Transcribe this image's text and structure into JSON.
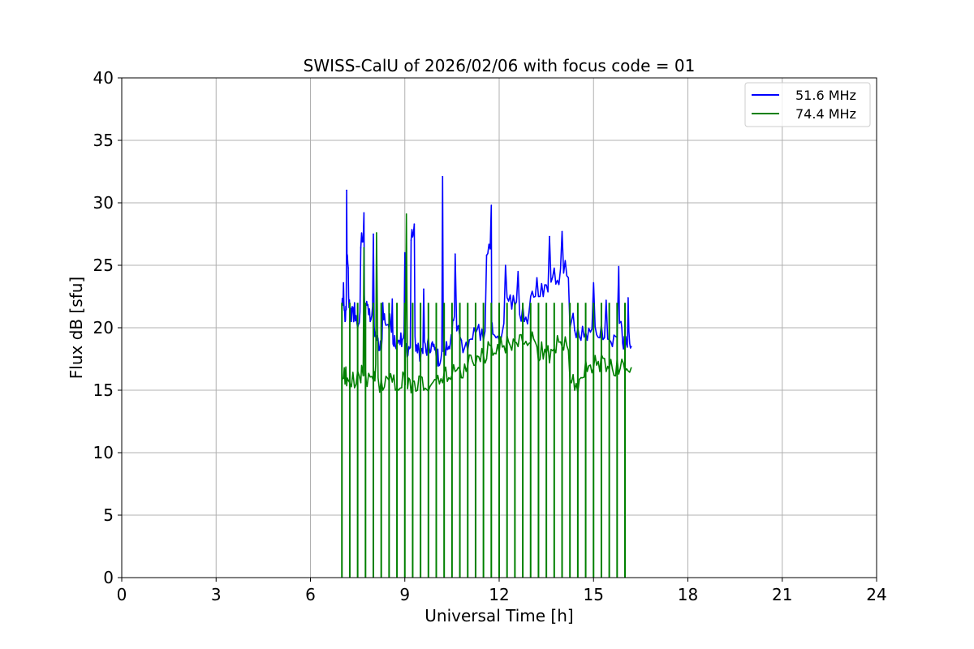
{
  "chart_data": {
    "type": "line",
    "title": "SWISS-CalU of 2026/02/06 with focus code = 01",
    "xlabel": "Universal Time [h]",
    "ylabel": "Flux dB [sfu]",
    "xlim": [
      0,
      24
    ],
    "ylim": [
      0,
      40
    ],
    "xticks": [
      0,
      3,
      6,
      9,
      12,
      15,
      18,
      21,
      24
    ],
    "yticks": [
      0,
      5,
      10,
      15,
      20,
      25,
      30,
      35,
      40
    ],
    "grid": true,
    "legend_position": "top-right",
    "series": [
      {
        "name": "51.6 MHz",
        "color": "#0000ff",
        "x": [
          7.0,
          7.05,
          7.1,
          7.15,
          7.2,
          7.25,
          7.3,
          7.4,
          7.5,
          7.6,
          7.7,
          7.75,
          7.8,
          7.9,
          8.0,
          8.1,
          8.2,
          8.3,
          8.4,
          8.5,
          8.6,
          8.7,
          8.8,
          8.9,
          9.0,
          9.1,
          9.2,
          9.3,
          9.4,
          9.5,
          9.6,
          9.7,
          9.8,
          9.9,
          10.0,
          10.1,
          10.2,
          10.3,
          10.4,
          10.5,
          10.6,
          10.8,
          11.0,
          11.2,
          11.4,
          11.6,
          11.75,
          11.8,
          12.0,
          12.2,
          12.4,
          12.6,
          12.8,
          13.0,
          13.2,
          13.4,
          13.6,
          13.8,
          14.0,
          14.2,
          14.4,
          14.6,
          14.8,
          15.0,
          15.2,
          15.4,
          15.6,
          15.8,
          15.9,
          16.0,
          16.1,
          16.2
        ],
        "y": [
          21.5,
          23.6,
          20.5,
          31.0,
          24.8,
          21.5,
          20.5,
          22.0,
          20.0,
          26.4,
          29.2,
          21.5,
          21.8,
          20.5,
          27.5,
          19.0,
          18.2,
          22.0,
          20.2,
          19.8,
          22.3,
          18.5,
          19.0,
          18.5,
          26.0,
          17.8,
          27.0,
          28.3,
          18.0,
          17.5,
          23.1,
          17.8,
          18.0,
          18.5,
          17.5,
          17.0,
          32.1,
          17.8,
          18.5,
          19.5,
          25.9,
          19.0,
          18.2,
          20.0,
          19.0,
          25.8,
          29.8,
          19.5,
          19.0,
          25.0,
          21.5,
          24.5,
          20.5,
          22.5,
          24.0,
          22.5,
          27.3,
          23.5,
          27.7,
          24.0,
          19.8,
          19.0,
          19.0,
          23.6,
          19.2,
          22.2,
          18.5,
          24.9,
          20.0,
          18.0,
          22.4,
          18.5
        ]
      },
      {
        "name": "74.4 MHz",
        "color": "#008000",
        "x": [
          7.0,
          7.1,
          7.2,
          7.4,
          7.6,
          7.7,
          7.8,
          8.0,
          8.1,
          8.3,
          8.5,
          8.7,
          8.9,
          9.05,
          9.2,
          9.4,
          9.6,
          9.8,
          10.0,
          10.2,
          10.4,
          10.6,
          10.8,
          11.0,
          11.2,
          11.4,
          11.6,
          11.8,
          12.0,
          12.2,
          12.4,
          12.6,
          12.8,
          13.0,
          13.2,
          13.4,
          13.6,
          13.8,
          14.0,
          14.2,
          14.4,
          14.6,
          14.8,
          15.0,
          15.2,
          15.4,
          15.6,
          15.8,
          16.0,
          16.2
        ],
        "y": [
          15.8,
          15.5,
          15.8,
          15.2,
          15.6,
          26.4,
          15.3,
          15.8,
          27.6,
          15.0,
          15.8,
          15.0,
          15.2,
          29.1,
          14.8,
          15.0,
          15.0,
          15.3,
          15.8,
          15.6,
          16.0,
          16.5,
          16.0,
          17.0,
          17.0,
          17.3,
          17.5,
          17.8,
          18.0,
          18.0,
          18.2,
          18.5,
          18.7,
          18.8,
          18.5,
          17.5,
          17.2,
          18.0,
          18.5,
          18.2,
          15.0,
          16.0,
          16.5,
          16.8,
          16.5,
          16.5,
          16.7,
          16.3,
          16.5,
          16.8
        ]
      }
    ]
  }
}
